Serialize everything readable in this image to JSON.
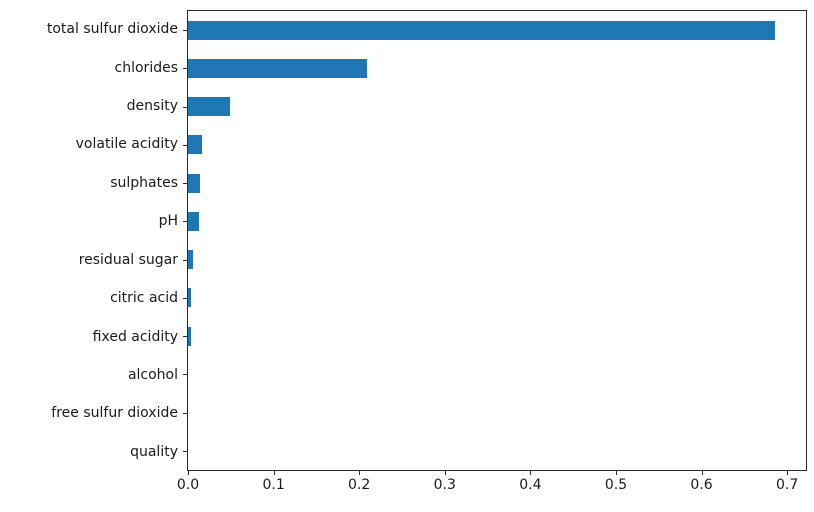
{
  "chart_data": {
    "type": "bar",
    "orientation": "horizontal",
    "title": "",
    "xlabel": "",
    "ylabel": "",
    "categories": [
      "total sulfur dioxide",
      "chlorides",
      "density",
      "volatile acidity",
      "sulphates",
      "pH",
      "residual sugar",
      "citric acid",
      "fixed acidity",
      "alcohol",
      "free sulfur dioxide",
      "quality"
    ],
    "values": [
      0.686,
      0.209,
      0.049,
      0.016,
      0.014,
      0.013,
      0.006,
      0.004,
      0.0035,
      0.0,
      0.0,
      0.0
    ],
    "xlim": [
      0.0,
      0.722
    ],
    "xticks": [
      0.0,
      0.1,
      0.2,
      0.3,
      0.4,
      0.5,
      0.6,
      0.7
    ],
    "xtick_labels": [
      "0.0",
      "0.1",
      "0.2",
      "0.3",
      "0.4",
      "0.5",
      "0.6",
      "0.7"
    ],
    "grid": false,
    "legend": false,
    "bar_color": "#1f77b4"
  },
  "colors": {
    "bar": "#1f77b4",
    "spine": "#2a2a2a",
    "text": "#1a1a1a",
    "background": "#ffffff"
  }
}
